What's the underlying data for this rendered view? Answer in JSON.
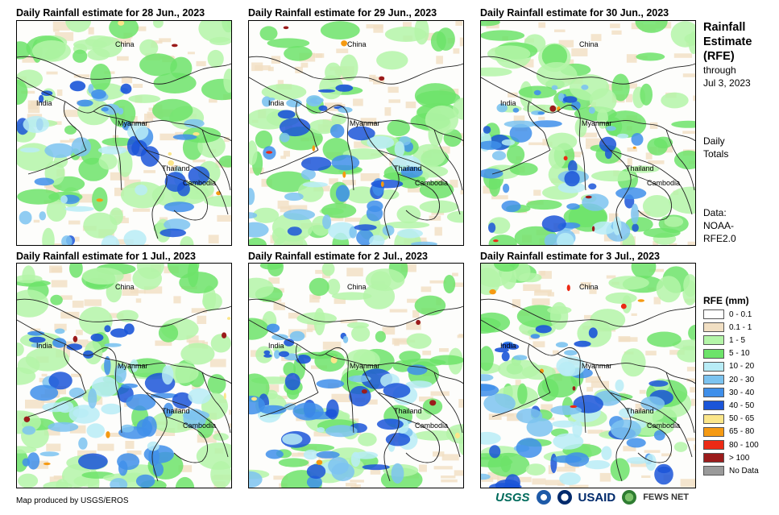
{
  "panels": [
    {
      "title": "Daily Rainfall estimate for 28 Jun., 2023",
      "intensity": 0.55
    },
    {
      "title": "Daily Rainfall estimate for 29 Jun., 2023",
      "intensity": 0.6
    },
    {
      "title": "Daily Rainfall estimate for 30 Jun., 2023",
      "intensity": 0.65
    },
    {
      "title": "Daily Rainfall estimate for 1 Jul., 2023",
      "intensity": 0.75
    },
    {
      "title": "Daily Rainfall estimate for 2 Jul., 2023",
      "intensity": 0.75
    },
    {
      "title": "Daily Rainfall estimate for 3 Jul., 2023",
      "intensity": 0.8
    }
  ],
  "map_labels": {
    "china": "China",
    "india": "India",
    "myanmar": "Myanmar",
    "thailand": "Thailand",
    "cambodia": "Cambodia"
  },
  "sidebar": {
    "title_line1": "Rainfall",
    "title_line2": "Estimate",
    "title_line3": "(RFE)",
    "through": "through",
    "date": "Jul 3, 2023",
    "daily_line1": "Daily",
    "daily_line2": "Totals",
    "data_line1": "Data:",
    "data_line2": "NOAA-",
    "data_line3": "RFE2.0"
  },
  "legend": {
    "title": "RFE (mm)",
    "items": [
      {
        "label": "0 - 0.1",
        "color": "#ffffff"
      },
      {
        "label": "0.1 - 1",
        "color": "#f1dfc3"
      },
      {
        "label": "1 - 5",
        "color": "#b4f5a8"
      },
      {
        "label": "5 - 10",
        "color": "#6de36a"
      },
      {
        "label": "10 - 20",
        "color": "#b8ecf6"
      },
      {
        "label": "20 - 30",
        "color": "#7cc3f0"
      },
      {
        "label": "30 - 40",
        "color": "#3f8fea"
      },
      {
        "label": "40 - 50",
        "color": "#1b55d8"
      },
      {
        "label": "50 - 65",
        "color": "#fbe68a"
      },
      {
        "label": "65 - 80",
        "color": "#f59a13"
      },
      {
        "label": "80 - 100",
        "color": "#ec2a15"
      },
      {
        "label": "> 100",
        "color": "#9b1b1b"
      },
      {
        "label": "No Data",
        "color": "#9a9a9a"
      }
    ]
  },
  "credit": "Map produced by USGS/EROS",
  "logos": {
    "usgs": "USGS",
    "usaid": "USAID",
    "fews": "FEWS NET"
  }
}
